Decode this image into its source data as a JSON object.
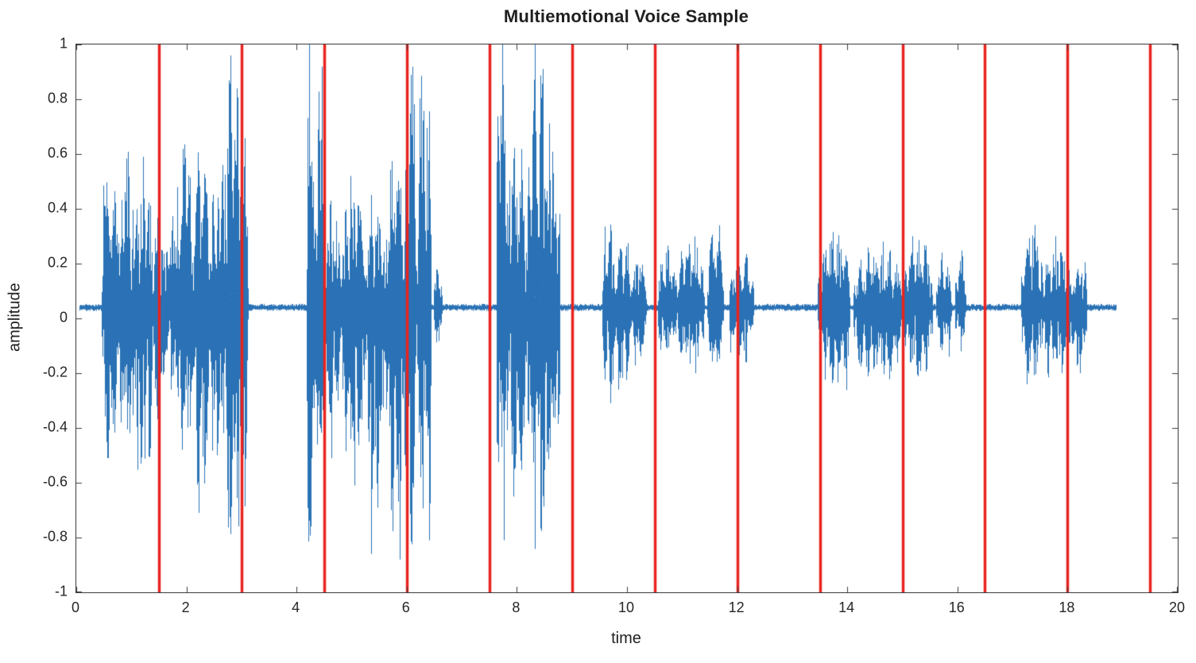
{
  "chart_data": {
    "type": "line",
    "title": "Multiemotional Voice Sample",
    "xlabel": "time",
    "ylabel": "amplitude",
    "xlim": [
      0,
      20
    ],
    "ylim": [
      -1,
      1
    ],
    "xticks": [
      0,
      2,
      4,
      6,
      8,
      10,
      12,
      14,
      16,
      18,
      20
    ],
    "yticks": [
      -1,
      -0.8,
      -0.6,
      -0.4,
      -0.2,
      0,
      0.2,
      0.4,
      0.6,
      0.8,
      1
    ],
    "grid": false,
    "legend_position": "none",
    "colors": {
      "waveform": "#2a72b5",
      "boundary": "#e8231f",
      "axes": "#3b3b3b",
      "text": "#262626"
    },
    "baseline_offset": 0.04,
    "signal_span": [
      0.05,
      18.88
    ],
    "segment_boundaries": [
      1.5,
      3,
      4.5,
      6,
      7.5,
      9,
      10.5,
      12,
      13.5,
      15,
      16.5,
      18,
      19.5
    ],
    "bursts_format": [
      "t_start",
      "t_end",
      "peak_positive",
      "peak_negative"
    ],
    "bursts": [
      [
        0.45,
        0.78,
        0.6,
        0.55
      ],
      [
        0.78,
        1.05,
        0.67,
        0.8
      ],
      [
        1.05,
        1.38,
        0.55,
        0.75
      ],
      [
        1.38,
        1.62,
        0.35,
        0.45
      ],
      [
        1.62,
        1.8,
        0.45,
        0.3
      ],
      [
        1.8,
        2.1,
        0.74,
        0.6
      ],
      [
        2.1,
        2.42,
        0.63,
        0.75
      ],
      [
        2.42,
        2.62,
        0.55,
        0.65
      ],
      [
        2.62,
        3.12,
        0.92,
        1.0
      ],
      [
        4.18,
        4.32,
        1.0,
        1.0
      ],
      [
        4.32,
        4.5,
        0.95,
        0.9
      ],
      [
        4.5,
        4.8,
        0.45,
        0.55
      ],
      [
        4.8,
        5.25,
        0.48,
        0.65
      ],
      [
        5.25,
        5.6,
        0.45,
        0.9
      ],
      [
        5.6,
        5.95,
        0.62,
        0.95
      ],
      [
        5.95,
        6.18,
        0.97,
        1.0
      ],
      [
        6.18,
        6.45,
        0.91,
        0.85
      ],
      [
        6.48,
        6.65,
        0.16,
        0.14
      ],
      [
        7.62,
        7.8,
        0.97,
        0.85
      ],
      [
        7.8,
        8.18,
        0.68,
        0.8
      ],
      [
        8.18,
        8.62,
        1.0,
        1.0
      ],
      [
        8.62,
        8.78,
        0.75,
        0.7
      ],
      [
        9.55,
        9.8,
        0.32,
        0.38
      ],
      [
        9.8,
        10.08,
        0.26,
        0.3
      ],
      [
        10.08,
        10.35,
        0.2,
        0.22
      ],
      [
        10.55,
        10.9,
        0.24,
        0.2
      ],
      [
        10.9,
        11.4,
        0.28,
        0.24
      ],
      [
        11.45,
        11.75,
        0.3,
        0.26
      ],
      [
        11.85,
        12.3,
        0.22,
        0.2
      ],
      [
        13.45,
        14.05,
        0.3,
        0.32
      ],
      [
        14.1,
        15.0,
        0.24,
        0.3
      ],
      [
        15.0,
        15.55,
        0.26,
        0.28
      ],
      [
        15.6,
        15.9,
        0.2,
        0.18
      ],
      [
        15.95,
        16.15,
        0.22,
        0.16
      ],
      [
        17.15,
        17.55,
        0.32,
        0.28
      ],
      [
        17.55,
        18.05,
        0.26,
        0.3
      ],
      [
        18.05,
        18.35,
        0.2,
        0.24
      ]
    ]
  }
}
